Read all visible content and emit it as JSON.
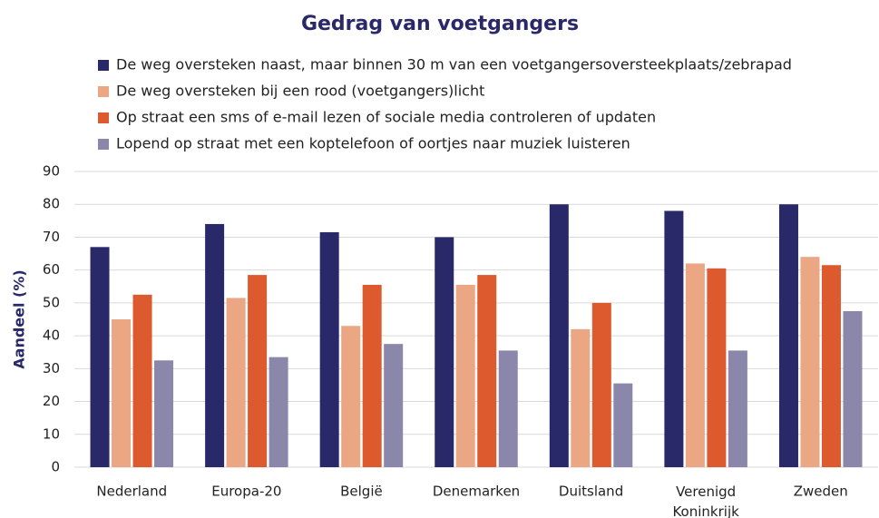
{
  "chart_data": {
    "type": "bar",
    "title": "Gedrag van voetgangers",
    "ylabel": "Aandeel (%)",
    "categories": [
      "Nederland",
      "Europa-20",
      "België",
      "Denemarken",
      "Duitsland",
      "Verenigd Koninkrijk",
      "Zweden"
    ],
    "series": [
      {
        "name": "De weg oversteken naast, maar binnen 30 m van een voetgangersoversteekplaats/zebrapad",
        "color": "#29296a",
        "values": [
          67,
          74,
          71.5,
          70,
          80,
          78,
          80
        ]
      },
      {
        "name": "De weg oversteken bij een rood (voetgangers)licht",
        "color": "#eba684",
        "values": [
          45,
          51.5,
          43,
          55.5,
          42,
          62,
          64
        ]
      },
      {
        "name": "Op straat een sms of e-mail lezen of sociale media controleren of updaten",
        "color": "#dc5a2d",
        "values": [
          52.5,
          58.5,
          55.5,
          58.5,
          50,
          60.5,
          61.5
        ]
      },
      {
        "name": "Lopend op straat met een koptelefoon of oortjes naar muziek luisteren",
        "color": "#8a87aa",
        "values": [
          32.5,
          33.5,
          37.5,
          35.5,
          25.5,
          35.5,
          47.5
        ]
      }
    ],
    "ylim": [
      0,
      90
    ],
    "yticks": [
      0,
      10,
      20,
      30,
      40,
      50,
      60,
      70,
      80,
      90
    ],
    "grid": true,
    "legend": "top"
  }
}
